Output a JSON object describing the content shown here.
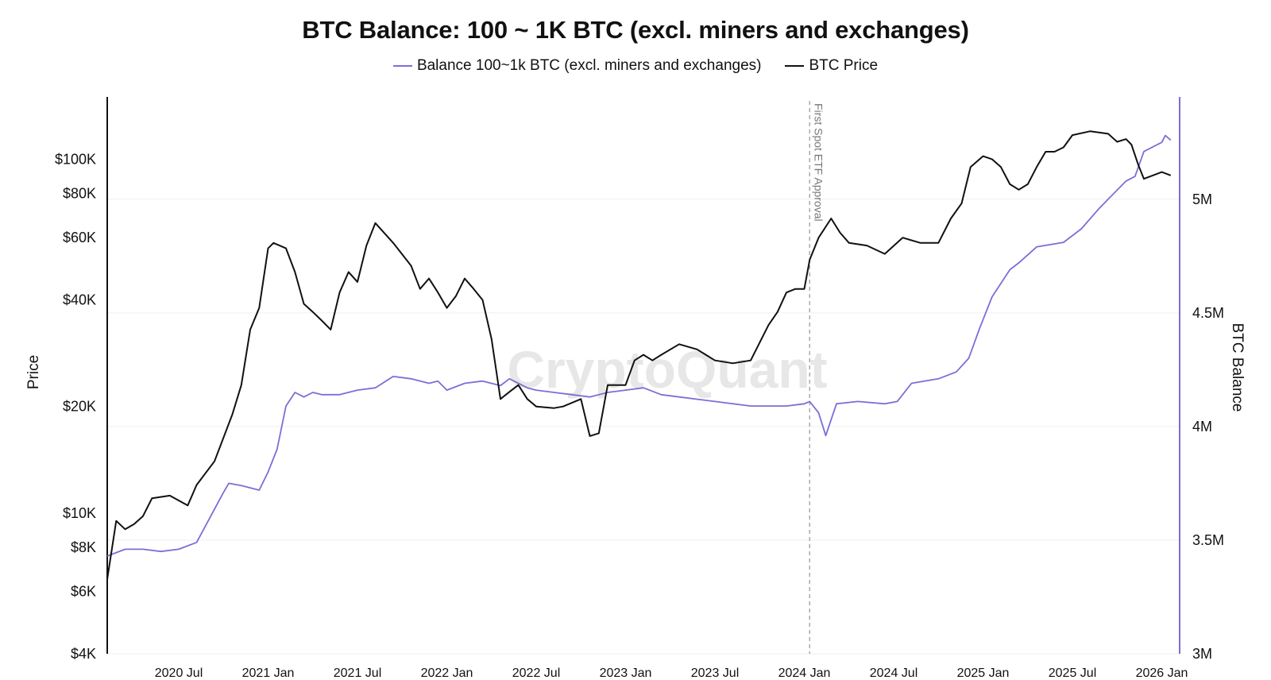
{
  "chart_data": {
    "type": "line",
    "title": "BTC Balance: 100 ~ 1K BTC (excl. miners and exchanges)",
    "watermark": "CryptoQuant",
    "annotation": "First Spot ETF Approval",
    "annotation_x": 2024.03,
    "y_left": {
      "label": "Price",
      "scale": "log",
      "range": [
        4000,
        150000
      ],
      "ticks": [
        4000,
        6000,
        8000,
        10000,
        20000,
        40000,
        60000,
        80000,
        100000
      ],
      "tick_labels": [
        "$4K",
        "$6K",
        "$8K",
        "$10K",
        "$20K",
        "$40K",
        "$60K",
        "$80K",
        "$100K"
      ]
    },
    "y_right": {
      "label": "BTC Balance",
      "scale": "linear",
      "range": [
        3000000,
        5450000
      ],
      "ticks": [
        3000000,
        3500000,
        4000000,
        4500000,
        5000000
      ],
      "tick_labels": [
        "3M",
        "3.5M",
        "4M",
        "4.5M",
        "5M"
      ],
      "color": "#7b6fd6"
    },
    "x_axis": {
      "range": [
        2020.1,
        2026.1
      ],
      "ticks": [
        2020.5,
        2021.0,
        2021.5,
        2022.0,
        2022.5,
        2023.0,
        2023.5,
        2024.0,
        2024.5,
        2025.0,
        2025.5,
        2026.0
      ],
      "tick_labels": [
        "2020 Jul",
        "2021 Jan",
        "2021 Jul",
        "2022 Jan",
        "2022 Jul",
        "2023 Jan",
        "2023 Jul",
        "2024 Jan",
        "2024 Jul",
        "2025 Jan",
        "2025 Jul",
        "2026 Jan"
      ]
    },
    "series": [
      {
        "name": "Balance 100~1k BTC (excl. miners and exchanges)",
        "axis": "right",
        "color": "#7b6fd6",
        "x": [
          2020.1,
          2020.2,
          2020.3,
          2020.4,
          2020.5,
          2020.6,
          2020.75,
          2020.78,
          2020.85,
          2020.95,
          2021.0,
          2021.05,
          2021.1,
          2021.15,
          2021.2,
          2021.25,
          2021.3,
          2021.4,
          2021.5,
          2021.6,
          2021.7,
          2021.8,
          2021.9,
          2021.95,
          2022.0,
          2022.1,
          2022.2,
          2022.3,
          2022.35,
          2022.45,
          2022.5,
          2022.6,
          2022.7,
          2022.8,
          2022.9,
          2023.0,
          2023.1,
          2023.2,
          2023.3,
          2023.5,
          2023.7,
          2023.9,
          2024.0,
          2024.03,
          2024.08,
          2024.12,
          2024.18,
          2024.3,
          2024.45,
          2024.52,
          2024.6,
          2024.75,
          2024.85,
          2024.92,
          2024.98,
          2025.05,
          2025.15,
          2025.2,
          2025.3,
          2025.45,
          2025.55,
          2025.65,
          2025.7,
          2025.8,
          2025.85,
          2025.9,
          2026.0,
          2026.02,
          2026.05
        ],
        "y": [
          3430000,
          3460000,
          3460000,
          3450000,
          3460000,
          3490000,
          3710000,
          3750000,
          3740000,
          3720000,
          3800000,
          3900000,
          4090000,
          4150000,
          4130000,
          4150000,
          4140000,
          4140000,
          4160000,
          4170000,
          4220000,
          4210000,
          4190000,
          4200000,
          4160000,
          4190000,
          4200000,
          4180000,
          4210000,
          4170000,
          4160000,
          4150000,
          4140000,
          4130000,
          4150000,
          4160000,
          4170000,
          4140000,
          4130000,
          4110000,
          4090000,
          4090000,
          4100000,
          4110000,
          4060000,
          3960000,
          4100000,
          4110000,
          4100000,
          4110000,
          4190000,
          4210000,
          4240000,
          4300000,
          4430000,
          4570000,
          4690000,
          4720000,
          4790000,
          4810000,
          4870000,
          4960000,
          5000000,
          5080000,
          5100000,
          5210000,
          5250000,
          5280000,
          5260000
        ]
      },
      {
        "name": "BTC Price",
        "axis": "left",
        "color": "#111111",
        "x": [
          2020.1,
          2020.15,
          2020.2,
          2020.25,
          2020.3,
          2020.35,
          2020.45,
          2020.55,
          2020.6,
          2020.7,
          2020.8,
          2020.85,
          2020.9,
          2020.95,
          2021.0,
          2021.03,
          2021.1,
          2021.15,
          2021.2,
          2021.25,
          2021.3,
          2021.35,
          2021.4,
          2021.45,
          2021.5,
          2021.55,
          2021.6,
          2021.7,
          2021.8,
          2021.85,
          2021.9,
          2021.95,
          2022.0,
          2022.05,
          2022.1,
          2022.15,
          2022.2,
          2022.25,
          2022.3,
          2022.35,
          2022.4,
          2022.45,
          2022.5,
          2022.6,
          2022.65,
          2022.75,
          2022.8,
          2022.85,
          2022.9,
          2023.0,
          2023.05,
          2023.1,
          2023.15,
          2023.2,
          2023.3,
          2023.4,
          2023.5,
          2023.6,
          2023.7,
          2023.8,
          2023.85,
          2023.9,
          2023.95,
          2024.0,
          2024.03,
          2024.08,
          2024.15,
          2024.2,
          2024.25,
          2024.35,
          2024.45,
          2024.55,
          2024.65,
          2024.75,
          2024.82,
          2024.88,
          2024.93,
          2025.0,
          2025.05,
          2025.1,
          2025.15,
          2025.2,
          2025.25,
          2025.3,
          2025.35,
          2025.4,
          2025.45,
          2025.5,
          2025.6,
          2025.7,
          2025.75,
          2025.8,
          2025.83,
          2025.87,
          2025.9,
          2025.95,
          2026.0,
          2026.05
        ],
        "y": [
          6500,
          9500,
          9000,
          9300,
          9800,
          11000,
          11200,
          10500,
          12000,
          14000,
          19000,
          23000,
          33000,
          38000,
          56000,
          58000,
          56000,
          48000,
          39000,
          37000,
          35000,
          33000,
          42000,
          48000,
          45000,
          57000,
          66000,
          58000,
          50000,
          43000,
          46000,
          42000,
          38000,
          41000,
          46000,
          43000,
          40000,
          31000,
          21000,
          22000,
          23000,
          21000,
          20000,
          19800,
          20000,
          21000,
          16500,
          16800,
          23000,
          23000,
          27000,
          28000,
          27000,
          28000,
          30000,
          29000,
          27000,
          26500,
          27000,
          34000,
          37000,
          42000,
          43000,
          43000,
          52000,
          60000,
          68000,
          62000,
          58000,
          57000,
          54000,
          60000,
          58000,
          58000,
          68000,
          75000,
          95000,
          102000,
          100000,
          95000,
          85000,
          82000,
          85000,
          95000,
          105000,
          105000,
          108000,
          117000,
          120000,
          118000,
          112000,
          114000,
          110000,
          96000,
          88000,
          90000,
          92000,
          90000
        ]
      }
    ]
  }
}
